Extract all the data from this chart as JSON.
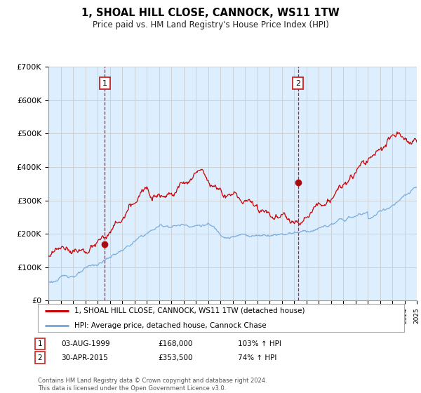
{
  "title": "1, SHOAL HILL CLOSE, CANNOCK, WS11 1TW",
  "subtitle": "Price paid vs. HM Land Registry's House Price Index (HPI)",
  "ylim": [
    0,
    700000
  ],
  "yticks": [
    0,
    100000,
    200000,
    300000,
    400000,
    500000,
    600000,
    700000
  ],
  "ytick_labels": [
    "£0",
    "£100K",
    "£200K",
    "£300K",
    "£400K",
    "£500K",
    "£600K",
    "£700K"
  ],
  "line1_color": "#cc0000",
  "line2_color": "#7aacdc",
  "plot_bg_color": "#ddeeff",
  "purchase1_date": 1999.58,
  "purchase1_price": 168000,
  "purchase2_date": 2015.33,
  "purchase2_price": 353500,
  "legend_line1": "1, SHOAL HILL CLOSE, CANNOCK, WS11 1TW (detached house)",
  "legend_line2": "HPI: Average price, detached house, Cannock Chase",
  "table_row1": [
    "1",
    "03-AUG-1999",
    "£168,000",
    "103% ↑ HPI"
  ],
  "table_row2": [
    "2",
    "30-APR-2015",
    "£353,500",
    "74% ↑ HPI"
  ],
  "footer": "Contains HM Land Registry data © Crown copyright and database right 2024.\nThis data is licensed under the Open Government Licence v3.0.",
  "xmin": 1995,
  "xmax": 2025,
  "background_color": "#ffffff",
  "grid_color": "#cccccc",
  "label_box_color": "#cc2222"
}
